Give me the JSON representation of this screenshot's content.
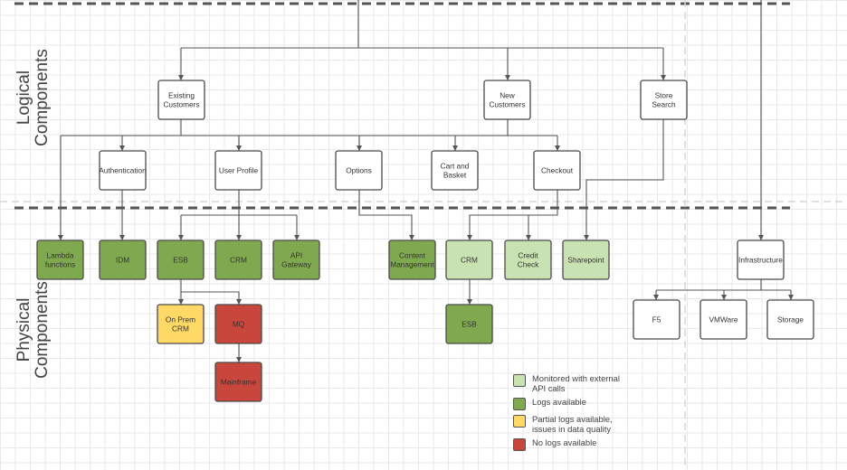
{
  "sections": {
    "logical": "Logical Components",
    "physical": "Physical Components"
  },
  "colors": {
    "dark_green": "#7fa84f",
    "light_green": "#c9e2b2",
    "yellow": "#ffd966",
    "red": "#c8463b",
    "white": "#ffffff"
  },
  "nodes": [
    {
      "id": "existing",
      "label": [
        "Existing",
        "Customers"
      ],
      "status": "white"
    },
    {
      "id": "new",
      "label": [
        "New",
        "Customers"
      ],
      "status": "white"
    },
    {
      "id": "store",
      "label": [
        "Store",
        "Search"
      ],
      "status": "white"
    },
    {
      "id": "auth",
      "label": [
        "Authentication"
      ],
      "status": "white"
    },
    {
      "id": "profile",
      "label": [
        "User Profile"
      ],
      "status": "white"
    },
    {
      "id": "options",
      "label": [
        "Options"
      ],
      "status": "white"
    },
    {
      "id": "cart",
      "label": [
        "Cart and",
        "Basket"
      ],
      "status": "white"
    },
    {
      "id": "checkout",
      "label": [
        "Checkout"
      ],
      "status": "white"
    },
    {
      "id": "lambda",
      "label": [
        "Lambda",
        "functions"
      ],
      "status": "dark_green"
    },
    {
      "id": "idm",
      "label": [
        "IDM"
      ],
      "status": "dark_green"
    },
    {
      "id": "esb1",
      "label": [
        "ESB"
      ],
      "status": "dark_green"
    },
    {
      "id": "crm1",
      "label": [
        "CRM"
      ],
      "status": "dark_green"
    },
    {
      "id": "api",
      "label": [
        "API",
        "Gateway"
      ],
      "status": "dark_green"
    },
    {
      "id": "content",
      "label": [
        "Content",
        "Management"
      ],
      "status": "dark_green"
    },
    {
      "id": "crm2",
      "label": [
        "CRM"
      ],
      "status": "light_green"
    },
    {
      "id": "credit",
      "label": [
        "Credit",
        "Check"
      ],
      "status": "light_green"
    },
    {
      "id": "sharepoint",
      "label": [
        "Sharepoint"
      ],
      "status": "light_green"
    },
    {
      "id": "onprem",
      "label": [
        "On Prem",
        "CRM"
      ],
      "status": "yellow"
    },
    {
      "id": "mq",
      "label": [
        "MQ"
      ],
      "status": "red"
    },
    {
      "id": "mainframe",
      "label": [
        "Mainframe"
      ],
      "status": "red"
    },
    {
      "id": "esb2",
      "label": [
        "ESB"
      ],
      "status": "dark_green"
    },
    {
      "id": "infra",
      "label": [
        "Infrastructure"
      ],
      "status": "white"
    },
    {
      "id": "f5",
      "label": [
        "F5"
      ],
      "status": "white"
    },
    {
      "id": "vmware",
      "label": [
        "VMWare"
      ],
      "status": "white"
    },
    {
      "id": "storage",
      "label": [
        "Storage"
      ],
      "status": "white"
    }
  ],
  "legend": [
    {
      "status": "light_green",
      "text": "Monitored with external API calls"
    },
    {
      "status": "dark_green",
      "text": "Logs available"
    },
    {
      "status": "yellow",
      "text": "Partial logs available, issues in data quality"
    },
    {
      "status": "red",
      "text": "No logs available"
    }
  ]
}
